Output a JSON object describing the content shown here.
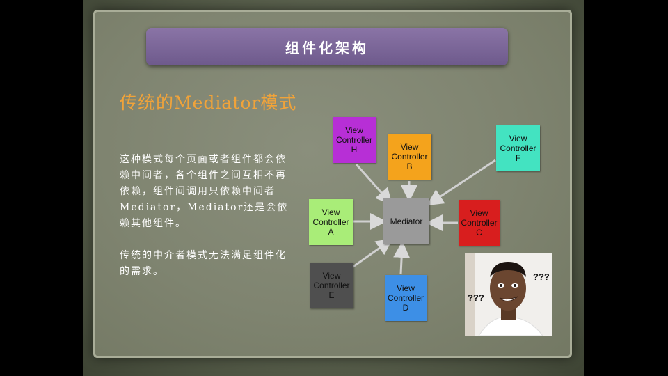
{
  "title": "组件化架构",
  "subtitle": "传统的Mediator模式",
  "paragraphs": [
    "这种模式每个页面或者组件都会依赖中间者，各个组件之间互相不再依赖，组件间调用只依赖中间者Mediator，Mediator还是会依赖其他组件。",
    "传统的中介者模式无法满足组件化的需求。"
  ],
  "diagram": {
    "mediator": {
      "label": "Mediator",
      "color": "#9a9a9a"
    },
    "controllers": [
      {
        "id": "H",
        "lines": [
          "View",
          "Controller",
          "H"
        ],
        "color": "#b72fd6"
      },
      {
        "id": "B",
        "lines": [
          "View",
          "Controller",
          "B"
        ],
        "color": "#f4a31c"
      },
      {
        "id": "F",
        "lines": [
          "View",
          "Controller",
          "F"
        ],
        "color": "#43e3c1"
      },
      {
        "id": "A",
        "lines": [
          "View",
          "Controller",
          "A"
        ],
        "color": "#a9ed78"
      },
      {
        "id": "C",
        "lines": [
          "View",
          "Controller",
          "C"
        ],
        "color": "#d81e1e"
      },
      {
        "id": "E",
        "lines": [
          "View",
          "Controller",
          "E"
        ],
        "color": "#4f4f4f"
      },
      {
        "id": "D",
        "lines": [
          "View",
          "Controller",
          "D"
        ],
        "color": "#3d8fe6"
      }
    ]
  },
  "meme": {
    "caption_left": "???",
    "caption_right": "???"
  }
}
